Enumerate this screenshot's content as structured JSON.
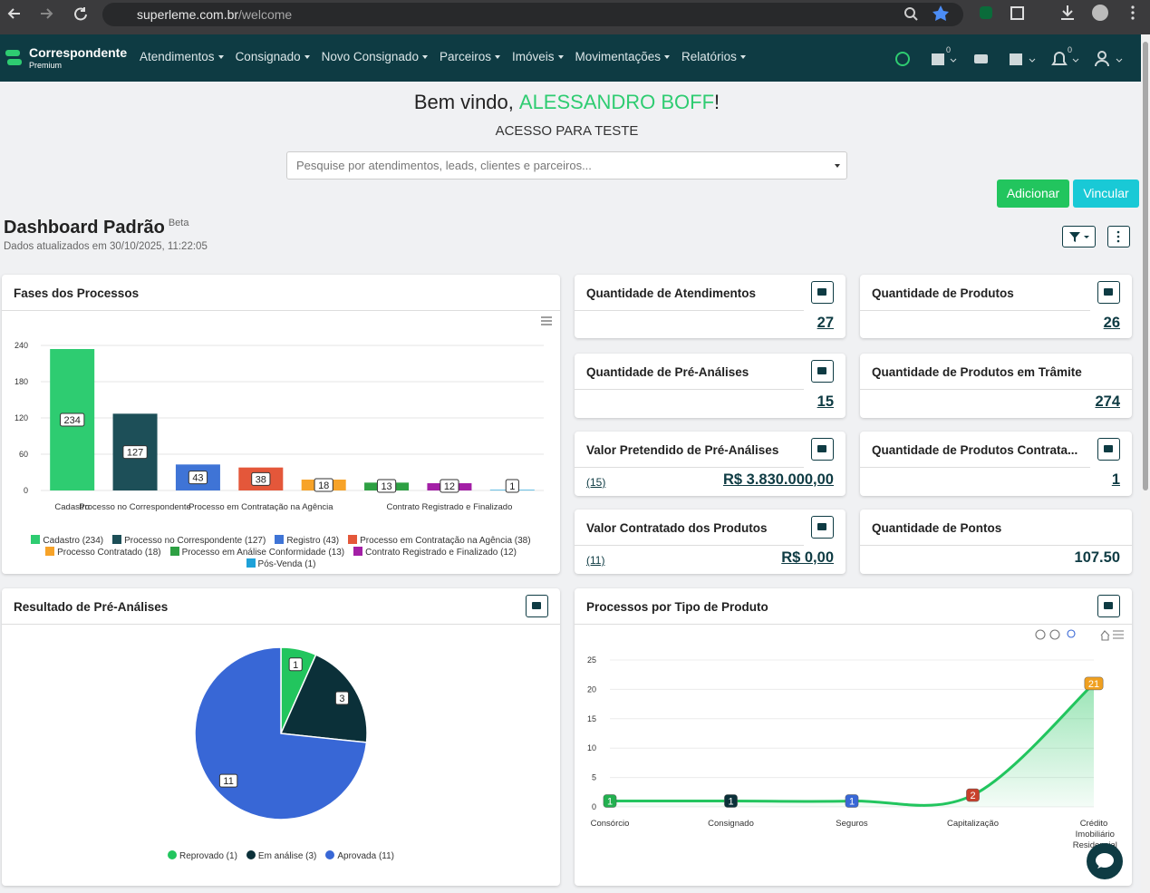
{
  "browser": {
    "url_host": "superleme.com.br",
    "url_path": "/welcome"
  },
  "nav": {
    "brand": "Correspondente",
    "brand_sub": "Premium",
    "menu": [
      "Atendimentos",
      "Consignado",
      "Novo Consignado",
      "Parceiros",
      "Imóveis",
      "Movimentações",
      "Relatórios"
    ],
    "calendar_badge": "0",
    "bell_badge": "0"
  },
  "welcome": {
    "greeting": "Bem vindo,",
    "user": "ALESSANDRO BOFF",
    "exclamation": "!",
    "subtitle": "ACESSO PARA TESTE",
    "search_placeholder": "Pesquise por atendimentos, leads, clientes e parceiros..."
  },
  "actions": [
    "Adicionar",
    "Vincular"
  ],
  "dashboard": {
    "title": "Dashboard Padrão",
    "badge": "Beta",
    "updated": "Dados atualizados em 30/10/2025, 11:22:05"
  },
  "cards": [
    {
      "title": "Quantidade de Atendimentos",
      "value": "27",
      "calendar": true,
      "link": true
    },
    {
      "title": "Quantidade de Produtos",
      "value": "26",
      "calendar": true,
      "link": true
    },
    {
      "title": "Quantidade de Pré-Análises",
      "value": "15",
      "calendar": true,
      "link": true
    },
    {
      "title": "Quantidade de Produtos em Trâmite",
      "value": "274",
      "calendar": false,
      "link": true
    },
    {
      "title": "Valor Pretendido de Pré-Análises",
      "count": "(15)",
      "value": "R$ 3.830.000,00",
      "calendar": true,
      "link": true
    },
    {
      "title": "Quantidade de Produtos Contrata...",
      "value": "1",
      "calendar": true,
      "link": true
    },
    {
      "title": "Valor Contratado dos Produtos",
      "count": "(11)",
      "value": "R$ 0,00",
      "calendar": true,
      "link": true
    },
    {
      "title": "Quantidade de Pontos",
      "value": "107.50",
      "calendar": false,
      "link": false
    }
  ],
  "chart_data": [
    {
      "type": "bar",
      "title": "Fases dos Processos",
      "categories": [
        "Cadastro",
        "Processo no Correspondente",
        null,
        "Processo em Contratação na Agência",
        null,
        null,
        "Contrato Registrado e Finalizado",
        null
      ],
      "values": [
        234,
        127,
        43,
        38,
        18,
        13,
        12,
        1
      ],
      "colors": [
        "#2ecc71",
        "#1d4f58",
        "#3f74d6",
        "#e4573a",
        "#f7a329",
        "#2ea043",
        "#a31fa6",
        "#1ea1d8"
      ],
      "legend_labels": [
        "Cadastro (234)",
        "Processo no Correspondente (127)",
        "Registro (43)",
        "Processo em Contratação na Agência (38)",
        "Processo Contratado (18)",
        "Processo em Análise Conformidade (13)",
        "Contrato Registrado e Finalizado (12)",
        "Pós-Venda (1)"
      ],
      "ylim": [
        0,
        240
      ],
      "yticks": [
        0,
        60,
        120,
        180,
        240
      ],
      "grid": true
    },
    {
      "type": "pie",
      "title": "Resultado de Pré-Análises",
      "values": [
        1,
        3,
        11
      ],
      "colors": [
        "#22c55e",
        "#0b3039",
        "#3867d6"
      ],
      "legend_labels": [
        "Reprovado (1)",
        "Em análise (3)",
        "Aprovada (11)"
      ]
    },
    {
      "type": "line",
      "title": "Processos por Tipo de Produto",
      "categories": [
        "Consórcio",
        "Consignado",
        "Seguros",
        "Capitalização",
        "Crédito Imobiliário Residencial"
      ],
      "values": [
        1,
        1,
        1,
        2,
        21
      ],
      "color": "#22c55e",
      "label_colors": [
        "#22b04f",
        "#0b3039",
        "#3867d6",
        "#c8402b",
        "#f0a020"
      ],
      "ylim": [
        0,
        25
      ],
      "yticks": [
        0,
        5,
        10,
        15,
        20,
        25
      ],
      "grid": true
    }
  ]
}
